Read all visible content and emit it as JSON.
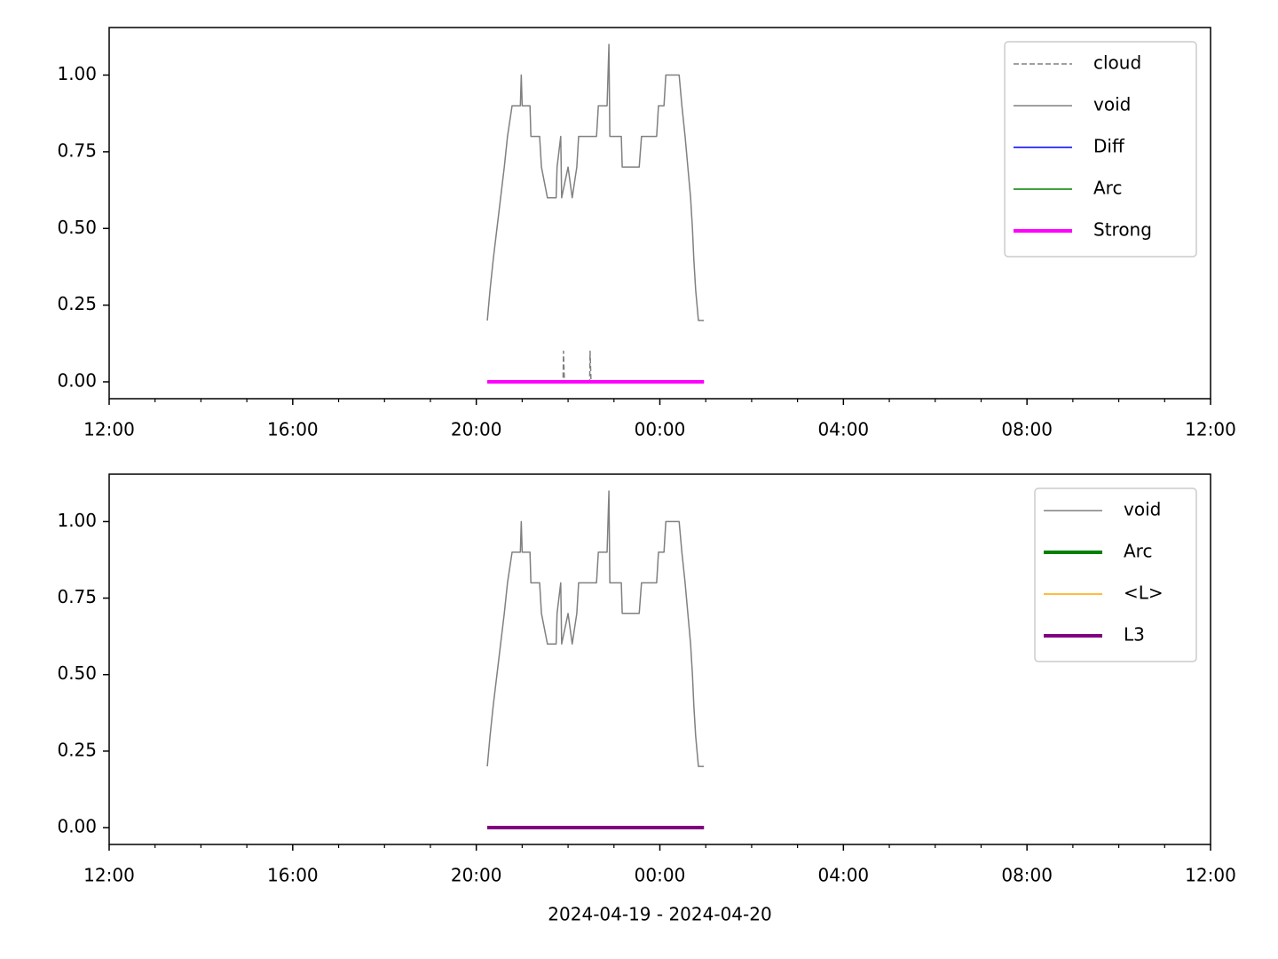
{
  "chart_data": [
    {
      "type": "line",
      "xlim": [
        12,
        36
      ],
      "xticks": [
        {
          "value": 12,
          "label": "12:00"
        },
        {
          "value": 16,
          "label": "16:00"
        },
        {
          "value": 20,
          "label": "20:00"
        },
        {
          "value": 24,
          "label": "00:00"
        },
        {
          "value": 28,
          "label": "04:00"
        },
        {
          "value": 32,
          "label": "08:00"
        },
        {
          "value": 36,
          "label": "12:00"
        }
      ],
      "xminorticks": [
        13,
        14,
        15,
        17,
        18,
        19,
        21,
        22,
        23,
        25,
        26,
        27,
        29,
        30,
        31,
        33,
        34,
        35
      ],
      "ylim": [
        -0.055,
        1.155
      ],
      "yticks": [
        {
          "value": 0,
          "label": "0.00"
        },
        {
          "value": 0.25,
          "label": "0.25"
        },
        {
          "value": 0.5,
          "label": "0.50"
        },
        {
          "value": 0.75,
          "label": "0.75"
        },
        {
          "value": 1,
          "label": "1.00"
        }
      ],
      "legend": "upper right",
      "series": [
        {
          "name": "cloud",
          "color": "#808080",
          "linestyle": "dashed",
          "linewidth": 1.5,
          "x": [
            20.24,
            21.89,
            21.9,
            21.92,
            22.47,
            22.48,
            22.5,
            24.96
          ],
          "values": [
            0,
            0,
            0.1,
            0,
            0,
            0.1,
            0,
            0
          ]
        },
        {
          "name": "void",
          "color": "#808080",
          "linestyle": "solid",
          "linewidth": 1.5,
          "x": [
            20.24,
            20.3,
            20.37,
            20.45,
            20.53,
            20.61,
            20.68,
            20.78,
            20.96,
            20.98,
            21.0,
            21.17,
            21.19,
            21.38,
            21.42,
            21.55,
            21.74,
            21.76,
            21.84,
            21.86,
            22.0,
            22.09,
            22.19,
            22.23,
            22.62,
            22.66,
            22.85,
            22.89,
            22.91,
            23.16,
            23.18,
            23.55,
            23.6,
            23.93,
            23.97,
            24.09,
            24.13,
            24.42,
            24.48,
            24.55,
            24.61,
            24.67,
            24.71,
            24.74,
            24.78,
            24.84,
            24.96
          ],
          "values": [
            0.2,
            0.3,
            0.4,
            0.5,
            0.6,
            0.7,
            0.8,
            0.9,
            0.9,
            1.0,
            0.9,
            0.9,
            0.8,
            0.8,
            0.7,
            0.6,
            0.6,
            0.7,
            0.8,
            0.6,
            0.7,
            0.6,
            0.7,
            0.8,
            0.8,
            0.9,
            0.9,
            1.1,
            0.8,
            0.8,
            0.7,
            0.7,
            0.8,
            0.8,
            0.9,
            0.9,
            1.0,
            1.0,
            0.9,
            0.8,
            0.7,
            0.6,
            0.5,
            0.4,
            0.3,
            0.2,
            0.2
          ]
        },
        {
          "name": "Diff",
          "color": "#0000ff",
          "linestyle": "solid",
          "linewidth": 1.5,
          "x": [
            20.24,
            24.96
          ],
          "values": [
            0,
            0
          ]
        },
        {
          "name": "Arc",
          "color": "#008000",
          "linestyle": "solid",
          "linewidth": 1.5,
          "x": [
            20.24,
            24.96
          ],
          "values": [
            0,
            0
          ]
        },
        {
          "name": "Strong",
          "color": "#ff00ff",
          "linestyle": "solid",
          "linewidth": 4,
          "x": [
            20.24,
            24.96
          ],
          "values": [
            0,
            0
          ]
        }
      ]
    },
    {
      "type": "line",
      "xlabel": "2024-04-19 - 2024-04-20",
      "xlim": [
        12,
        36
      ],
      "xticks": [
        {
          "value": 12,
          "label": "12:00"
        },
        {
          "value": 16,
          "label": "16:00"
        },
        {
          "value": 20,
          "label": "20:00"
        },
        {
          "value": 24,
          "label": "00:00"
        },
        {
          "value": 28,
          "label": "04:00"
        },
        {
          "value": 32,
          "label": "08:00"
        },
        {
          "value": 36,
          "label": "12:00"
        }
      ],
      "xminorticks": [
        13,
        14,
        15,
        17,
        18,
        19,
        21,
        22,
        23,
        25,
        26,
        27,
        29,
        30,
        31,
        33,
        34,
        35
      ],
      "ylim": [
        -0.055,
        1.155
      ],
      "yticks": [
        {
          "value": 0,
          "label": "0.00"
        },
        {
          "value": 0.25,
          "label": "0.25"
        },
        {
          "value": 0.5,
          "label": "0.50"
        },
        {
          "value": 0.75,
          "label": "0.75"
        },
        {
          "value": 1,
          "label": "1.00"
        }
      ],
      "legend": "upper right",
      "series": [
        {
          "name": "void",
          "color": "#808080",
          "linestyle": "solid",
          "linewidth": 1.5,
          "x": [
            20.24,
            20.3,
            20.37,
            20.45,
            20.53,
            20.61,
            20.68,
            20.78,
            20.96,
            20.98,
            21.0,
            21.17,
            21.19,
            21.38,
            21.42,
            21.55,
            21.74,
            21.76,
            21.84,
            21.86,
            22.0,
            22.09,
            22.19,
            22.23,
            22.62,
            22.66,
            22.85,
            22.89,
            22.91,
            23.16,
            23.18,
            23.55,
            23.6,
            23.93,
            23.97,
            24.09,
            24.13,
            24.42,
            24.48,
            24.55,
            24.61,
            24.67,
            24.71,
            24.74,
            24.78,
            24.84,
            24.96
          ],
          "values": [
            0.2,
            0.3,
            0.4,
            0.5,
            0.6,
            0.7,
            0.8,
            0.9,
            0.9,
            1.0,
            0.9,
            0.9,
            0.8,
            0.8,
            0.7,
            0.6,
            0.6,
            0.7,
            0.8,
            0.6,
            0.7,
            0.6,
            0.7,
            0.8,
            0.8,
            0.9,
            0.9,
            1.1,
            0.8,
            0.8,
            0.7,
            0.7,
            0.8,
            0.8,
            0.9,
            0.9,
            1.0,
            1.0,
            0.9,
            0.8,
            0.7,
            0.6,
            0.5,
            0.4,
            0.3,
            0.2,
            0.2
          ]
        },
        {
          "name": "Arc",
          "color": "#008000",
          "linestyle": "solid",
          "linewidth": 4,
          "x": [
            20.24,
            24.96
          ],
          "values": [
            0,
            0
          ]
        },
        {
          "name": "<L>",
          "color": "#ffa500",
          "linestyle": "solid",
          "linewidth": 1.5,
          "x": [
            20.24,
            24.96
          ],
          "values": [
            0,
            0
          ]
        },
        {
          "name": "L3",
          "color": "#800080",
          "linestyle": "solid",
          "linewidth": 4,
          "x": [
            20.24,
            24.96
          ],
          "values": [
            0,
            0
          ]
        }
      ]
    }
  ]
}
